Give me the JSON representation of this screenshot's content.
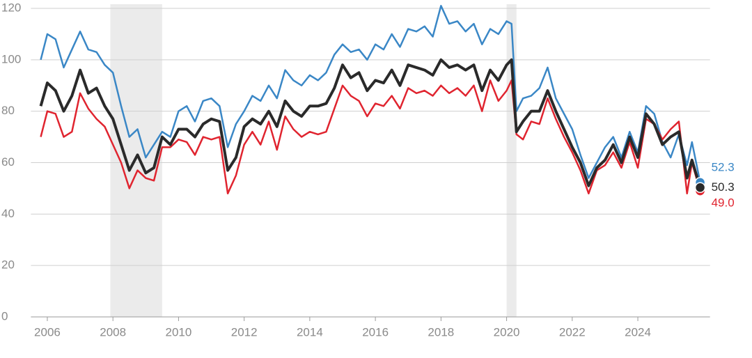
{
  "chart_data": {
    "type": "line",
    "xlim": [
      2005.5,
      2026.2
    ],
    "xticks": [
      2006,
      2008,
      2010,
      2012,
      2014,
      2016,
      2018,
      2020,
      2022,
      2024
    ],
    "ylim": [
      0,
      120
    ],
    "yticks": [
      0,
      20,
      40,
      60,
      80,
      100,
      120
    ],
    "grid": true,
    "shaded_ranges": [
      [
        2007.92,
        2009.5
      ],
      [
        2020.0,
        2020.3
      ]
    ],
    "shade_color": "#ebebeb",
    "x": [
      2005.8,
      2006.0,
      2006.25,
      2006.5,
      2006.75,
      2007.0,
      2007.25,
      2007.5,
      2007.75,
      2008.0,
      2008.25,
      2008.5,
      2008.75,
      2009.0,
      2009.25,
      2009.5,
      2009.75,
      2010.0,
      2010.25,
      2010.5,
      2010.75,
      2011.0,
      2011.25,
      2011.5,
      2011.75,
      2012.0,
      2012.25,
      2012.5,
      2012.75,
      2013.0,
      2013.25,
      2013.5,
      2013.75,
      2014.0,
      2014.25,
      2014.5,
      2014.75,
      2015.0,
      2015.25,
      2015.5,
      2015.75,
      2016.0,
      2016.25,
      2016.5,
      2016.75,
      2017.0,
      2017.25,
      2017.5,
      2017.75,
      2018.0,
      2018.25,
      2018.5,
      2018.75,
      2019.0,
      2019.25,
      2019.5,
      2019.75,
      2020.0,
      2020.15,
      2020.3,
      2020.5,
      2020.75,
      2021.0,
      2021.25,
      2021.5,
      2021.75,
      2022.0,
      2022.25,
      2022.5,
      2022.75,
      2023.0,
      2023.25,
      2023.5,
      2023.75,
      2024.0,
      2024.25,
      2024.5,
      2024.75,
      2025.0,
      2025.25,
      2025.5,
      2025.65,
      2025.9
    ],
    "series": [
      {
        "color": "#3a87c6",
        "end_label": "52.3",
        "values": [
          100,
          110,
          108,
          97,
          104,
          111,
          104,
          103,
          98,
          95,
          82,
          70,
          73,
          62,
          67,
          72,
          70,
          80,
          82,
          76,
          84,
          85,
          82,
          66,
          75,
          80,
          86,
          84,
          90,
          85,
          96,
          92,
          90,
          94,
          92,
          95,
          102,
          106,
          103,
          104,
          100,
          106,
          104,
          110,
          105,
          112,
          111,
          113,
          109,
          121,
          114,
          115,
          111,
          114,
          106,
          112,
          110,
          115,
          114,
          80,
          85,
          86,
          89,
          97,
          85,
          79,
          73,
          63,
          54,
          60,
          66,
          70,
          62,
          72,
          64,
          82,
          79,
          68,
          62,
          71,
          59,
          68,
          52.3
        ]
      },
      {
        "color": "#e0242f",
        "end_label": "49.0",
        "values": [
          70,
          80,
          79,
          70,
          72,
          87,
          81,
          77,
          74,
          67,
          60,
          50,
          57,
          54,
          53,
          66,
          66,
          69,
          68,
          63,
          70,
          69,
          70,
          48,
          55,
          67,
          72,
          67,
          76,
          65,
          78,
          73,
          70,
          72,
          71,
          72,
          81,
          90,
          86,
          84,
          78,
          83,
          82,
          86,
          81,
          89,
          87,
          88,
          86,
          90,
          87,
          89,
          86,
          90,
          80,
          92,
          84,
          88,
          92,
          71,
          69,
          76,
          75,
          85,
          77,
          70,
          64,
          57,
          48,
          57,
          59,
          64,
          58,
          68,
          58,
          77,
          75,
          69,
          73,
          76,
          48,
          60,
          49.0
        ]
      },
      {
        "color": "#2a2a2a",
        "end_label": "50.3",
        "values": [
          82,
          91,
          88,
          80,
          86,
          96,
          87,
          89,
          82,
          77,
          67,
          57,
          63,
          56,
          58,
          70,
          67,
          73,
          73,
          70,
          75,
          77,
          76,
          57,
          62,
          74,
          77,
          75,
          80,
          74,
          84,
          80,
          78,
          82,
          82,
          83,
          89,
          98,
          93,
          95,
          88,
          92,
          91,
          96,
          90,
          98,
          97,
          96,
          94,
          100,
          97,
          98,
          96,
          98,
          88,
          96,
          92,
          98,
          100,
          72,
          76,
          80,
          80,
          88,
          80,
          73,
          66,
          60,
          51,
          58,
          61,
          67,
          60,
          70,
          62,
          79,
          75,
          67,
          70,
          72,
          54,
          61,
          50.3
        ]
      }
    ]
  }
}
